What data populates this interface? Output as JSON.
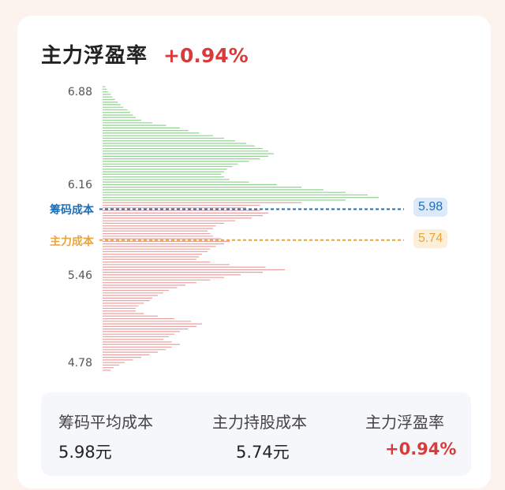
{
  "header": {
    "title": "主力浮盈率",
    "percent": "+0.94%"
  },
  "colors": {
    "profit_red": "#d93b3b",
    "chip_cost_blue": "#1f6fb5",
    "main_cost_orange": "#e8a53a",
    "upper_bars_green": "#8fd38f",
    "lower_bars_pink": "#eea0a0"
  },
  "chart_data": {
    "type": "bar",
    "orientation": "horizontal",
    "y_tick_labels": [
      "6.88",
      "6.16",
      "5.46",
      "4.78"
    ],
    "y_ticks": [
      6.88,
      6.16,
      5.46,
      4.78
    ],
    "ylim": [
      4.73,
      6.93
    ],
    "reference_lines": [
      {
        "name": "筹码成本",
        "value": 5.98,
        "label": "5.98",
        "color": "#1f6fb5"
      },
      {
        "name": "主力成本",
        "value": 5.74,
        "label": "5.74",
        "color": "#e8a53a"
      }
    ],
    "split_price": 6.03,
    "distribution": [
      [
        6.93,
        1
      ],
      [
        6.91,
        1.5
      ],
      [
        6.89,
        2
      ],
      [
        6.87,
        3
      ],
      [
        6.85,
        3.5
      ],
      [
        6.83,
        4.5
      ],
      [
        6.81,
        5.5
      ],
      [
        6.79,
        6.5
      ],
      [
        6.77,
        7.5
      ],
      [
        6.75,
        9
      ],
      [
        6.73,
        10
      ],
      [
        6.71,
        11
      ],
      [
        6.69,
        12
      ],
      [
        6.67,
        14
      ],
      [
        6.65,
        18
      ],
      [
        6.63,
        23
      ],
      [
        6.61,
        28
      ],
      [
        6.59,
        31
      ],
      [
        6.57,
        35
      ],
      [
        6.55,
        40
      ],
      [
        6.53,
        44
      ],
      [
        6.51,
        48
      ],
      [
        6.49,
        52
      ],
      [
        6.47,
        55
      ],
      [
        6.45,
        58
      ],
      [
        6.43,
        60
      ],
      [
        6.41,
        62
      ],
      [
        6.39,
        60
      ],
      [
        6.37,
        57
      ],
      [
        6.35,
        53
      ],
      [
        6.33,
        49
      ],
      [
        6.31,
        47
      ],
      [
        6.29,
        45
      ],
      [
        6.27,
        44
      ],
      [
        6.25,
        43
      ],
      [
        6.23,
        44
      ],
      [
        6.21,
        46
      ],
      [
        6.19,
        53
      ],
      [
        6.17,
        63
      ],
      [
        6.15,
        72
      ],
      [
        6.13,
        80
      ],
      [
        6.11,
        88
      ],
      [
        6.09,
        96
      ],
      [
        6.07,
        100
      ],
      [
        6.05,
        88
      ],
      [
        6.03,
        72
      ],
      [
        6.01,
        57
      ],
      [
        5.99,
        52
      ],
      [
        5.97,
        57
      ],
      [
        5.95,
        60
      ],
      [
        5.93,
        58
      ],
      [
        5.91,
        54
      ],
      [
        5.89,
        48
      ],
      [
        5.87,
        44
      ],
      [
        5.85,
        41
      ],
      [
        5.83,
        40
      ],
      [
        5.81,
        38
      ],
      [
        5.79,
        39
      ],
      [
        5.77,
        40
      ],
      [
        5.75,
        43
      ],
      [
        5.73,
        46
      ],
      [
        5.71,
        44
      ],
      [
        5.69,
        41
      ],
      [
        5.67,
        39
      ],
      [
        5.65,
        38
      ],
      [
        5.63,
        36
      ],
      [
        5.61,
        35
      ],
      [
        5.59,
        34
      ],
      [
        5.57,
        39
      ],
      [
        5.55,
        46
      ],
      [
        5.53,
        59
      ],
      [
        5.51,
        66
      ],
      [
        5.49,
        58
      ],
      [
        5.47,
        50
      ],
      [
        5.45,
        44
      ],
      [
        5.43,
        39
      ],
      [
        5.41,
        34
      ],
      [
        5.39,
        30
      ],
      [
        5.37,
        27
      ],
      [
        5.35,
        24
      ],
      [
        5.33,
        22
      ],
      [
        5.31,
        20
      ],
      [
        5.29,
        18
      ],
      [
        5.27,
        17
      ],
      [
        5.25,
        15
      ],
      [
        5.23,
        13
      ],
      [
        5.21,
        12
      ],
      [
        5.19,
        12
      ],
      [
        5.17,
        15
      ],
      [
        5.15,
        20
      ],
      [
        5.13,
        26
      ],
      [
        5.11,
        32
      ],
      [
        5.09,
        36
      ],
      [
        5.07,
        34
      ],
      [
        5.05,
        31
      ],
      [
        5.03,
        28
      ],
      [
        5.01,
        26
      ],
      [
        4.99,
        24
      ],
      [
        4.97,
        22
      ],
      [
        4.95,
        25
      ],
      [
        4.93,
        28
      ],
      [
        4.91,
        25
      ],
      [
        4.89,
        23
      ],
      [
        4.87,
        20
      ],
      [
        4.85,
        17
      ],
      [
        4.83,
        14
      ],
      [
        4.81,
        11
      ],
      [
        4.79,
        8
      ],
      [
        4.77,
        6
      ],
      [
        4.75,
        4
      ],
      [
        4.73,
        3
      ]
    ]
  },
  "summary": {
    "avg_cost_label": "筹码平均成本",
    "avg_cost_value": "5.98元",
    "main_cost_label": "主力持股成本",
    "main_cost_value": "5.74元",
    "profit_label": "主力浮盈率",
    "profit_value": "+0.94%"
  }
}
